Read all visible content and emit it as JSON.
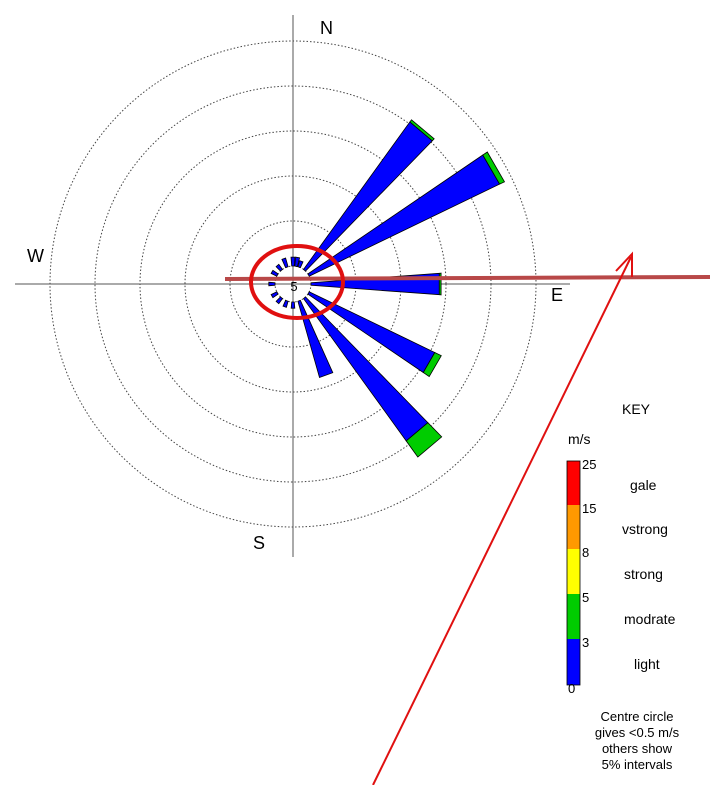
{
  "chart_data": {
    "type": "wind-rose",
    "compass_labels": {
      "north": "N",
      "east": "E",
      "south": "S",
      "west": "W"
    },
    "centre_label": "5",
    "ring_interval_percent": 5,
    "rings": 5,
    "speed_classes": [
      {
        "name": "light",
        "from": 0,
        "to": 3,
        "color": "#0000ff"
      },
      {
        "name": "modrate",
        "from": 3,
        "to": 5,
        "color": "#00cc00"
      },
      {
        "name": "strong",
        "from": 5,
        "to": 8,
        "color": "#ffff00"
      },
      {
        "name": "vstrong",
        "from": 8,
        "to": 15,
        "color": "#ff9900"
      },
      {
        "name": "gale",
        "from": 15,
        "to": 25,
        "color": "#ff0000"
      }
    ],
    "directions": [
      {
        "bearing": 0,
        "segments": [
          1.0
        ]
      },
      {
        "bearing": 10,
        "segments": [
          1.0
        ]
      },
      {
        "bearing": 20,
        "segments": [
          0.7
        ]
      },
      {
        "bearing": 40,
        "segments": [
          20.2,
          0.3
        ]
      },
      {
        "bearing": 60,
        "segments": [
          23.5,
          0.6
        ]
      },
      {
        "bearing": 90,
        "segments": [
          14.3,
          0.2
        ]
      },
      {
        "bearing": 120,
        "segments": [
          15.5,
          0.8
        ]
      },
      {
        "bearing": 140,
        "segments": [
          19.5,
          2.2
        ]
      },
      {
        "bearing": 160,
        "segments": [
          8.8
        ]
      },
      {
        "bearing": 180,
        "segments": [
          0.7
        ]
      },
      {
        "bearing": 200,
        "segments": [
          0.7
        ]
      },
      {
        "bearing": 220,
        "segments": [
          0.7
        ]
      },
      {
        "bearing": 240,
        "segments": [
          0.7
        ]
      },
      {
        "bearing": 270,
        "segments": [
          0.7
        ]
      },
      {
        "bearing": 300,
        "segments": [
          0.7
        ]
      },
      {
        "bearing": 320,
        "segments": [
          0.7
        ]
      },
      {
        "bearing": 340,
        "segments": [
          1.0
        ]
      }
    ],
    "key": {
      "title": "KEY",
      "unit": "m/s",
      "ticks": [
        "25",
        "15",
        "8",
        "5",
        "3",
        "0"
      ],
      "labels": [
        "gale",
        "vstrong",
        "strong",
        "modrate",
        "light"
      ],
      "note": [
        "Centre circle",
        "gives <0.5 m/s",
        "others show",
        "5% intervals"
      ]
    }
  },
  "annotations": {
    "circle_color": "#e01010",
    "line_color": "#b84848",
    "arrow_color": "#e01010"
  }
}
